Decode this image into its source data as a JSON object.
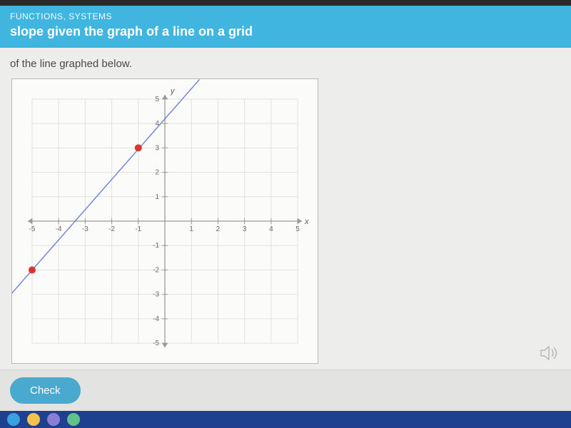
{
  "header": {
    "eyebrow": "FUNCTIONS, SYSTEMS",
    "title": "slope given the graph of a line on a grid"
  },
  "prompt": "of the line graphed below.",
  "check_label": "Check",
  "chart": {
    "type": "line",
    "background_color": "#fbfbf9",
    "border_color": "#b9b9b5",
    "grid_color": "#e1e1dd",
    "axis_color": "#9a9a95",
    "tick_color": "#9a9a95",
    "label_color": "#6a6a6a",
    "line_color": "#6f7fd6",
    "line_width": 1.4,
    "point_color": "#d8362c",
    "point_radius": 5,
    "xlim": [
      -5,
      5
    ],
    "ylim": [
      -5,
      5
    ],
    "tick_step": 1,
    "x_ticks": [
      -5,
      -4,
      -3,
      -2,
      -1,
      1,
      2,
      3,
      4,
      5
    ],
    "y_ticks": [
      1,
      2,
      3,
      4,
      5,
      -1,
      -2,
      -3,
      -4,
      -5
    ],
    "x_axis_label": "x",
    "y_axis_label": "y",
    "points": [
      {
        "x": -1,
        "y": 3
      },
      {
        "x": -5,
        "y": -2
      }
    ],
    "line_endpoints": [
      {
        "x": -5.8,
        "y": -3.0
      },
      {
        "x": 1.3,
        "y": 5.8
      }
    ],
    "tick_fontsize": 10
  },
  "taskbar": {
    "icons": [
      {
        "name": "edge",
        "color": "#3aa0e0"
      },
      {
        "name": "chrome",
        "color": "#f2c14e"
      },
      {
        "name": "teams",
        "color": "#8a7fd6"
      },
      {
        "name": "app",
        "color": "#5fc28a"
      }
    ]
  }
}
